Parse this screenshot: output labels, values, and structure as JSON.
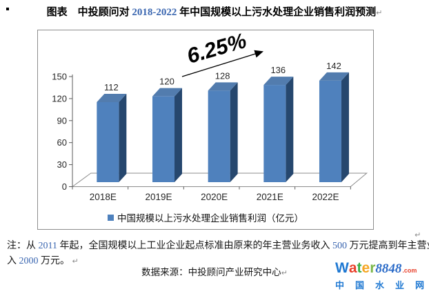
{
  "marks": {
    "eol": "↵",
    "bullet": "▪"
  },
  "title": {
    "prefix": "图表　中投顾问对 ",
    "highlight": "2018-2022",
    "suffix": " 年中国规模以上污水处理企业销售利润预测",
    "highlight_color": "#3a66b0"
  },
  "chart_data": {
    "type": "bar",
    "style": "3d",
    "categories": [
      "2018E",
      "2019E",
      "2020E",
      "2021E",
      "2022E"
    ],
    "values": [
      112,
      120,
      128,
      136,
      142
    ],
    "series_name": "中国规模以上污水处理企业销售利润（亿元）",
    "ylim": [
      0,
      150
    ],
    "yticks": [
      0,
      30,
      60,
      90,
      120,
      150
    ],
    "grid": false,
    "legend_position": "bottom",
    "annotation": {
      "text": "6.25%",
      "rotation_deg": -16
    },
    "colors": {
      "bar_front": "#4f81bd",
      "bar_side": "#26476e",
      "bar_top": "#527cae",
      "legend_marker": "#4e81bd",
      "axis": "#8c8c8c",
      "axis_dark": "#595959",
      "label": "#262626",
      "annotation": "#000000"
    }
  },
  "note": {
    "accent_color": "#3a66b0",
    "lines": [
      {
        "segments": [
          {
            "t": "注：从 "
          },
          {
            "t": "2011",
            "accent": true
          },
          {
            "t": " 年起，全国规模以上工业企业起点标准由原来的年主营业务收入 "
          },
          {
            "t": "500",
            "accent": true
          },
          {
            "t": " 万元提高到年主营业务收"
          }
        ]
      },
      {
        "segments": [
          {
            "t": "入 "
          },
          {
            "t": "2000",
            "accent": true
          },
          {
            "t": " 万元。"
          },
          {
            "t": " ↵",
            "mark": true
          }
        ]
      }
    ]
  },
  "source": {
    "text": "数据来源：中投顾问产业研究中心"
  },
  "logo": {
    "word_letters": [
      {
        "ch": "W",
        "color": "#1e78d2"
      },
      {
        "ch": "a",
        "color": "#e8412c"
      },
      {
        "ch": "t",
        "color": "#3dae49"
      },
      {
        "ch": "e",
        "color": "#f5a623"
      },
      {
        "ch": "r",
        "color": "#7ab648"
      }
    ],
    "number": "8848",
    "number_color": "#2b6bc8",
    "tld": ".com",
    "tld_color": "#e8412c",
    "subtitle": "中国水业网",
    "subtitle_color": "#1e78d2"
  }
}
